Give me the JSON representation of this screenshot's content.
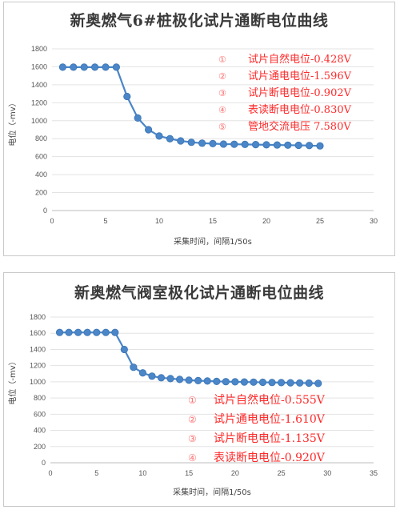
{
  "chart_data": [
    {
      "type": "line",
      "title": "新奥燃气6#桩极化试片通断电位曲线",
      "xlabel": "采集时间，间隔1/50s",
      "ylabel": "电位（-mv）",
      "xlim": [
        0,
        30
      ],
      "ylim": [
        0,
        1800
      ],
      "xticks": [
        0,
        5,
        10,
        15,
        20,
        25,
        30
      ],
      "yticks": [
        0,
        200,
        400,
        600,
        800,
        1000,
        1200,
        1400,
        1600,
        1800
      ],
      "grid": "horizontal",
      "series_color": "#4a86c8",
      "series": [
        {
          "x": [
            1,
            2,
            3,
            4,
            5,
            6,
            7,
            8,
            9,
            10,
            11,
            12,
            13,
            14,
            15,
            16,
            17,
            18,
            19,
            20,
            21,
            22,
            23,
            24,
            25
          ],
          "values": [
            1596,
            1596,
            1596,
            1596,
            1596,
            1596,
            1270,
            1030,
            900,
            830,
            800,
            775,
            760,
            750,
            745,
            740,
            738,
            736,
            734,
            732,
            730,
            728,
            726,
            724,
            720
          ]
        }
      ],
      "annotations": [
        {
          "num": "①",
          "text": "试片自然电位-0.428V"
        },
        {
          "num": "②",
          "text": "试片通电电位-1.596V"
        },
        {
          "num": "③",
          "text": "试片断电电位-0.902V"
        },
        {
          "num": "④",
          "text": "表读断电电位-0.830V"
        },
        {
          "num": "⑤",
          "text": "管地交流电压 7.580V"
        }
      ]
    },
    {
      "type": "line",
      "title": "新奥燃气阀室极化试片通断电位曲线",
      "xlabel": "采集时间，间隔1/50s",
      "ylabel": "电位（-mv）",
      "xlim": [
        0,
        35
      ],
      "ylim": [
        0,
        1800
      ],
      "xticks": [
        0,
        5,
        10,
        15,
        20,
        25,
        30,
        35
      ],
      "yticks": [
        0,
        200,
        400,
        600,
        800,
        1000,
        1200,
        1400,
        1600,
        1800
      ],
      "grid": "horizontal",
      "series_color": "#4a86c8",
      "series": [
        {
          "x": [
            1,
            2,
            3,
            4,
            5,
            6,
            7,
            8,
            9,
            10,
            11,
            12,
            13,
            14,
            15,
            16,
            17,
            18,
            19,
            20,
            21,
            22,
            23,
            24,
            25,
            26,
            27,
            28,
            29
          ],
          "values": [
            1610,
            1610,
            1610,
            1610,
            1610,
            1610,
            1610,
            1400,
            1180,
            1110,
            1070,
            1050,
            1040,
            1030,
            1020,
            1015,
            1010,
            1005,
            1002,
            1000,
            998,
            996,
            994,
            992,
            990,
            988,
            986,
            984,
            980
          ]
        }
      ],
      "annotations": [
        {
          "num": "①",
          "text": "试片自然电位-0.555V"
        },
        {
          "num": "②",
          "text": "试片通电电位-1.610V"
        },
        {
          "num": "③",
          "text": "试片断电电位-1.135V"
        },
        {
          "num": "④",
          "text": "表读断电电位-0.920V"
        }
      ]
    }
  ]
}
